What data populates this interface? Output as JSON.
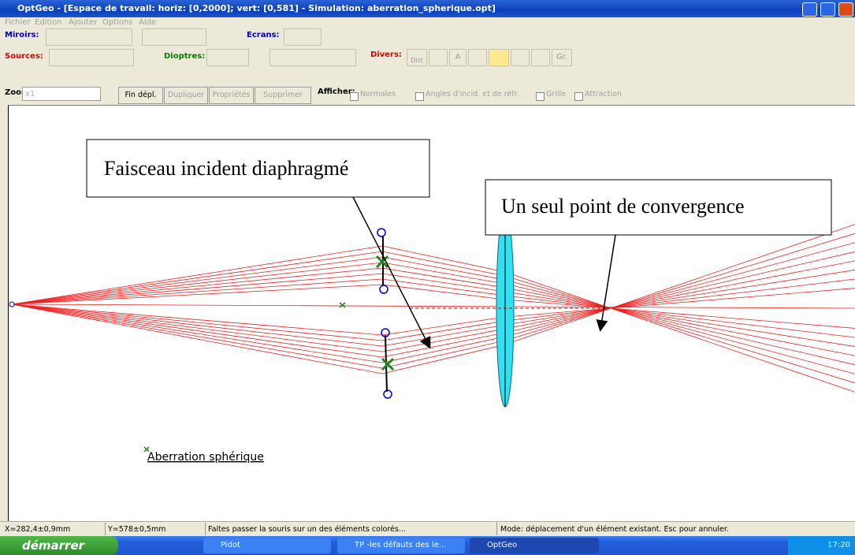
{
  "window": {
    "title": "OptGeo - [Espace de travail: horiz: [0,2000]; vert: [0,581] - Simulation: aberration_spherique.opt]"
  },
  "menu": [
    "Fichier",
    "Edition",
    "Ajouter",
    "Options",
    "Aide"
  ],
  "toolbar": {
    "miroirs": "Miroirs:",
    "ecrans": "Ecrans:",
    "sources": "Sources:",
    "dioptres": "Dioptres:",
    "divers": "Divers:",
    "divers_buttons": [
      "Dist",
      "A",
      "Gr."
    ],
    "zoom_label": "Zoom:",
    "zoom_value": "x1",
    "buttons": [
      "Fin dépl.",
      "Dupliquer",
      "Propriétés",
      "Supprimer"
    ],
    "afficher": "Afficher:",
    "checkboxes": [
      "Normales",
      "Angles d'incid. et de réfr.",
      "Grille",
      "Attraction"
    ]
  },
  "canvas": {
    "annotations": [
      "Faisceau incident diaphragmé",
      "Un seul point de convergence"
    ],
    "caption": "Aberration sphérique"
  },
  "status": [
    "X=282,4±0,9mm",
    "Y=578±0,5mm",
    "Faites passer la souris sur un des éléments colorés...",
    "Mode: déplacement d'un élément existant. Esc pour annuler."
  ],
  "taskbar": {
    "start": "démarrer",
    "items": [
      "Pidot",
      "TP -les défauts des le...",
      "OptGeo"
    ],
    "clock": "17:20"
  }
}
